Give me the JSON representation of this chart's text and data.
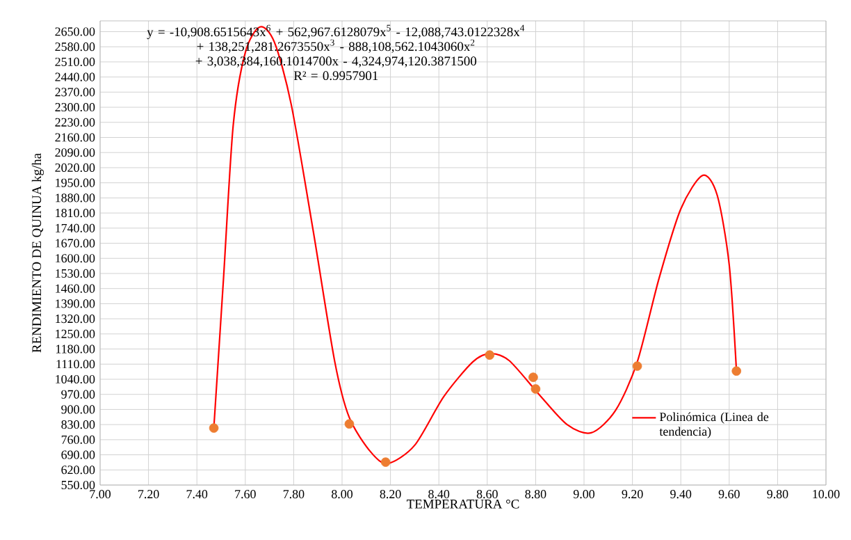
{
  "chart_data": {
    "type": "scatter",
    "xlabel": "TEMPERATURA °C",
    "ylabel": "RENDIMIENTO DE QUINUA kg/ha",
    "annotations": [
      "y = -10,908.6515643x$^{6}$ + 562,967.6128079x$^{5}$ - 12,088,743.0122328x$^{4}$ + 138,251,281.2673550x$^{3}$ - 888,108,562.1043060x$^{2}$ + 3,038,384,160.1014700x - 4,324,974,120.3871500",
      "R² = 0.9957901"
    ],
    "series": [
      {
        "color": "#ed7d31",
        "marker": "circle",
        "x": [
          7.47,
          8.03,
          8.18,
          8.61,
          8.79,
          8.8,
          9.22,
          9.63
        ],
        "values": [
          814,
          833,
          656,
          1152,
          1049,
          995,
          1101,
          1078
        ]
      },
      {
        "type": "line",
        "name": "Polinómica (Linea de tendencia)",
        "color": "#ff0000",
        "marker": "none",
        "line_style": "solid",
        "x": [
          7.47,
          7.51,
          7.55,
          7.6,
          7.66,
          7.72,
          7.79,
          7.88,
          7.97,
          8.03,
          8.12,
          8.19,
          8.3,
          8.42,
          8.54,
          8.61,
          8.69,
          8.81,
          8.93,
          9.03,
          9.13,
          9.22,
          9.31,
          9.4,
          9.49,
          9.55,
          9.6,
          9.63
        ],
        "values": [
          815,
          1507,
          2215,
          2553,
          2672,
          2602,
          2312,
          1732,
          1120,
          862,
          701,
          650,
          734,
          959,
          1120,
          1159,
          1127,
          975,
          830,
          792,
          895,
          1120,
          1507,
          1829,
          1984,
          1894,
          1571,
          1078
        ]
      }
    ],
    "xlim": [
      7.0,
      10.0
    ],
    "xticks": [
      {
        "value": 7.0,
        "label": "7.00"
      },
      {
        "value": 7.2,
        "label": "7.20"
      },
      {
        "value": 7.4,
        "label": "7.40"
      },
      {
        "value": 7.6,
        "label": "7.60"
      },
      {
        "value": 7.8,
        "label": "7.80"
      },
      {
        "value": 8.0,
        "label": "8.00"
      },
      {
        "value": 8.2,
        "label": "8.20"
      },
      {
        "value": 8.4,
        "label": "8.40"
      },
      {
        "value": 8.6,
        "label": "8.60"
      },
      {
        "value": 8.8,
        "label": "8.80"
      },
      {
        "value": 9.0,
        "label": "9.00"
      },
      {
        "value": 9.2,
        "label": "9.20"
      },
      {
        "value": 9.4,
        "label": "9.40"
      },
      {
        "value": 9.6,
        "label": "9.60"
      },
      {
        "value": 9.8,
        "label": "9.80"
      },
      {
        "value": 10.0,
        "label": "10.00"
      }
    ],
    "ylim": [
      550,
      2700
    ],
    "yticks": [
      {
        "value": 550,
        "label": "550.00"
      },
      {
        "value": 620,
        "label": "620.00"
      },
      {
        "value": 690,
        "label": "690.00"
      },
      {
        "value": 760,
        "label": "760.00"
      },
      {
        "value": 830,
        "label": "830.00"
      },
      {
        "value": 900,
        "label": "900.00"
      },
      {
        "value": 970,
        "label": "970.00"
      },
      {
        "value": 1040,
        "label": "1040.00"
      },
      {
        "value": 1110,
        "label": "1110.00"
      },
      {
        "value": 1180,
        "label": "1180.00"
      },
      {
        "value": 1250,
        "label": "1250.00"
      },
      {
        "value": 1320,
        "label": "1320.00"
      },
      {
        "value": 1390,
        "label": "1390.00"
      },
      {
        "value": 1460,
        "label": "1460.00"
      },
      {
        "value": 1530,
        "label": "1530.00"
      },
      {
        "value": 1600,
        "label": "1600.00"
      },
      {
        "value": 1670,
        "label": "1670.00"
      },
      {
        "value": 1740,
        "label": "1740.00"
      },
      {
        "value": 1810,
        "label": "1810.00"
      },
      {
        "value": 1880,
        "label": "1880.00"
      },
      {
        "value": 1950,
        "label": "1950.00"
      },
      {
        "value": 2020,
        "label": "2020.00"
      },
      {
        "value": 2090,
        "label": "2090.00"
      },
      {
        "value": 2160,
        "label": "2160.00"
      },
      {
        "value": 2230,
        "label": "2230.00"
      },
      {
        "value": 2300,
        "label": "2300.00"
      },
      {
        "value": 2370,
        "label": "2370.00"
      },
      {
        "value": 2440,
        "label": "2440.00"
      },
      {
        "value": 2510,
        "label": "2510.00"
      },
      {
        "value": 2580,
        "label": "2580.00"
      },
      {
        "value": 2650,
        "label": "2650.00"
      }
    ],
    "grid": true,
    "legend": "right"
  }
}
